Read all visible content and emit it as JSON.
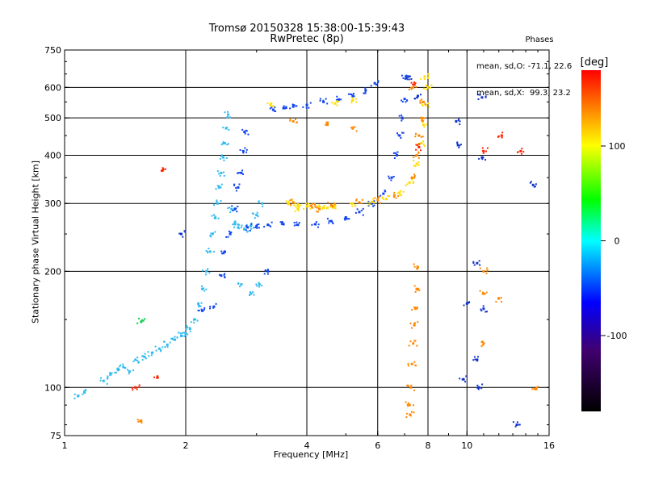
{
  "title": "Tromsø 20150328 15:38:00-15:39:43",
  "subtitle": "RwPretec (8p)",
  "stats": {
    "heading": "Phases",
    "line_o": "mean, sd,O: -71.1, 22.6",
    "line_x": "mean, sd,X:  99.3, 23.2"
  },
  "chart_data": {
    "type": "scatter",
    "x_scale": "log",
    "y_scale": "log",
    "xlabel": "Frequency [MHz]",
    "ylabel": "Stationary phase Virtual Height [km]",
    "xlim": [
      1,
      16
    ],
    "ylim": [
      75,
      750
    ],
    "x_ticks": [
      1,
      2,
      4,
      6,
      8,
      10,
      16
    ],
    "y_ticks": [
      75,
      100,
      200,
      300,
      400,
      500,
      600,
      750
    ],
    "grid": true,
    "colorbar": {
      "label": "[deg]",
      "range": [
        -180,
        180
      ],
      "ticks": [
        -100,
        0,
        100
      ],
      "colors": [
        "#000000",
        "#400070",
        "#0000ff",
        "#00ffff",
        "#00ff00",
        "#ffff00",
        "#ff0000"
      ]
    },
    "series": [
      {
        "color": "#33bbee",
        "points": [
          [
            1.08,
            95
          ],
          [
            1.12,
            97
          ],
          [
            1.25,
            104
          ],
          [
            1.3,
            108
          ],
          [
            1.36,
            111
          ],
          [
            1.4,
            113
          ],
          [
            1.45,
            110
          ],
          [
            1.5,
            118
          ],
          [
            1.58,
            120
          ],
          [
            1.65,
            123
          ],
          [
            1.72,
            126
          ],
          [
            1.8,
            129
          ],
          [
            1.88,
            133
          ],
          [
            1.95,
            136
          ],
          [
            2.0,
            138
          ],
          [
            2.05,
            142
          ],
          [
            2.1,
            150
          ],
          [
            2.15,
            165
          ],
          [
            2.2,
            180
          ],
          [
            2.25,
            200
          ],
          [
            2.3,
            225
          ],
          [
            2.33,
            250
          ],
          [
            2.37,
            275
          ],
          [
            2.4,
            300
          ],
          [
            2.42,
            330
          ],
          [
            2.45,
            360
          ],
          [
            2.48,
            395
          ],
          [
            2.5,
            430
          ],
          [
            2.52,
            470
          ],
          [
            2.55,
            510
          ],
          [
            2.6,
            290
          ],
          [
            2.65,
            265
          ],
          [
            2.7,
            260
          ],
          [
            2.8,
            258
          ],
          [
            2.9,
            262
          ],
          [
            3.0,
            280
          ],
          [
            3.1,
            300
          ],
          [
            2.75,
            185
          ],
          [
            2.9,
            175
          ],
          [
            3.05,
            185
          ]
        ]
      },
      {
        "color": "#1144ee",
        "points": [
          [
            2.2,
            158
          ],
          [
            2.35,
            162
          ],
          [
            2.45,
            195
          ],
          [
            2.5,
            225
          ],
          [
            2.58,
            250
          ],
          [
            2.65,
            290
          ],
          [
            2.7,
            330
          ],
          [
            2.75,
            360
          ],
          [
            2.78,
            410
          ],
          [
            2.8,
            460
          ],
          [
            2.85,
            260
          ],
          [
            3.0,
            262
          ],
          [
            3.2,
            264
          ],
          [
            3.5,
            265
          ],
          [
            3.8,
            264
          ],
          [
            4.2,
            265
          ],
          [
            4.6,
            270
          ],
          [
            5.0,
            276
          ],
          [
            5.4,
            285
          ],
          [
            5.8,
            300
          ],
          [
            6.2,
            318
          ],
          [
            6.5,
            350
          ],
          [
            6.7,
            400
          ],
          [
            6.8,
            450
          ],
          [
            6.9,
            500
          ],
          [
            7.0,
            560
          ],
          [
            7.05,
            640
          ],
          [
            3.3,
            525
          ],
          [
            3.5,
            530
          ],
          [
            3.7,
            535
          ],
          [
            4.0,
            540
          ],
          [
            4.4,
            550
          ],
          [
            4.8,
            558
          ],
          [
            5.2,
            570
          ],
          [
            5.6,
            590
          ],
          [
            5.9,
            615
          ],
          [
            3.2,
            200
          ]
        ]
      },
      {
        "color": "#ffdd00",
        "points": [
          [
            3.6,
            300
          ],
          [
            3.8,
            298
          ],
          [
            4.0,
            295
          ],
          [
            4.3,
            294
          ],
          [
            4.7,
            296
          ],
          [
            5.2,
            300
          ],
          [
            5.8,
            303
          ],
          [
            6.3,
            308
          ],
          [
            6.8,
            320
          ],
          [
            7.2,
            340
          ],
          [
            7.5,
            380
          ],
          [
            7.7,
            430
          ],
          [
            7.8,
            480
          ],
          [
            7.9,
            540
          ],
          [
            8.0,
            600
          ],
          [
            7.85,
            640
          ],
          [
            3.25,
            540
          ],
          [
            4.7,
            545
          ],
          [
            5.2,
            555
          ],
          [
            3.8,
            290
          ],
          [
            4.5,
            292
          ]
        ]
      },
      {
        "color": "#ff8800",
        "points": [
          [
            3.7,
            302
          ],
          [
            4.1,
            296
          ],
          [
            4.6,
            297
          ],
          [
            5.4,
            302
          ],
          [
            6.0,
            306
          ],
          [
            6.6,
            315
          ],
          [
            7.3,
            350
          ],
          [
            7.5,
            400
          ],
          [
            7.6,
            450
          ],
          [
            7.7,
            500
          ],
          [
            7.8,
            550
          ],
          [
            7.35,
            600
          ],
          [
            4.3,
            290
          ],
          [
            7.2,
            90
          ],
          [
            7.22,
            85
          ],
          [
            7.25,
            100
          ],
          [
            7.3,
            115
          ],
          [
            7.35,
            130
          ],
          [
            7.4,
            145
          ],
          [
            7.45,
            160
          ],
          [
            7.5,
            180
          ],
          [
            7.55,
            205
          ],
          [
            11.0,
            200
          ],
          [
            11.0,
            175
          ],
          [
            11.0,
            130
          ],
          [
            14.8,
            99
          ],
          [
            12.0,
            170
          ],
          [
            1.55,
            82
          ],
          [
            3.7,
            490
          ],
          [
            4.5,
            480
          ],
          [
            5.2,
            470
          ]
        ]
      },
      {
        "color": "#ff2200",
        "points": [
          [
            1.7,
            106
          ],
          [
            1.5,
            100
          ],
          [
            1.75,
            365
          ],
          [
            7.6,
            420
          ],
          [
            12.2,
            450
          ],
          [
            13.6,
            410
          ],
          [
            11.0,
            410
          ],
          [
            7.4,
            610
          ]
        ]
      },
      {
        "color": "#00cc44",
        "points": [
          [
            1.55,
            148
          ]
        ]
      },
      {
        "color": "#1133cc",
        "points": [
          [
            10.9,
            565
          ],
          [
            9.4,
            490
          ],
          [
            9.5,
            425
          ],
          [
            10.9,
            395
          ],
          [
            14.6,
            335
          ],
          [
            10.6,
            210
          ],
          [
            10.0,
            165
          ],
          [
            11.0,
            160
          ],
          [
            10.6,
            118
          ],
          [
            10.7,
            100
          ],
          [
            13.3,
            80
          ],
          [
            9.8,
            105
          ],
          [
            1.95,
            250
          ],
          [
            7.15,
            640
          ],
          [
            7.55,
            570
          ]
        ]
      }
    ]
  }
}
